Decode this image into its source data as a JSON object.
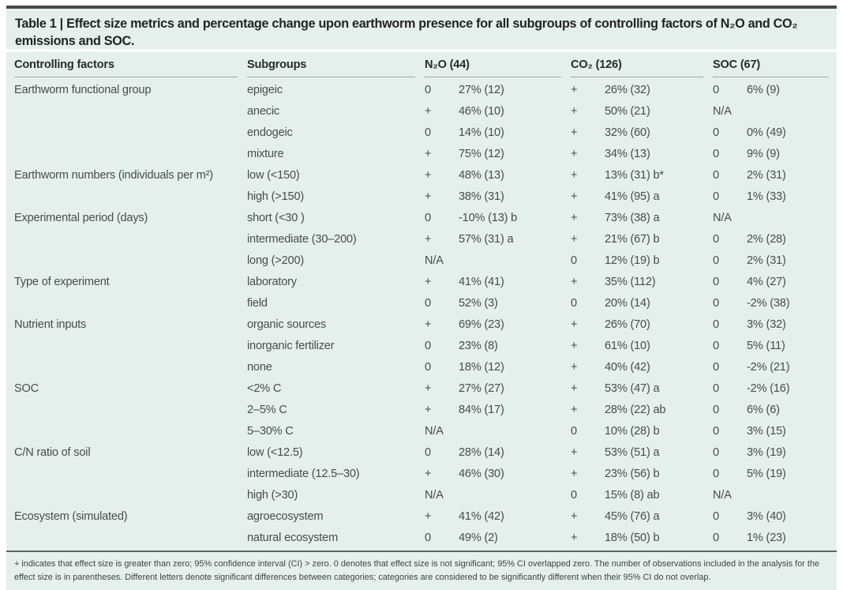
{
  "table": {
    "title": "Table 1 | Effect size metrics and percentage change upon earthworm presence for all subgroups of controlling factors of N₂O and CO₂ emissions and SOC.",
    "columns": {
      "factor": "Controlling factors",
      "subgroup": "Subgroups",
      "n2o": "N₂O (44)",
      "co2": "CO₂ (126)",
      "soc": "SOC (67)"
    },
    "rows": [
      {
        "factor": "Earthworm functional group",
        "subgroup": "epigeic",
        "n2o_sign": "0",
        "n2o_val": "27% (12)",
        "co2_sign": "+",
        "co2_val": "26% (32)",
        "soc_sign": "0",
        "soc_val": "6% (9)"
      },
      {
        "factor": "",
        "subgroup": "anecic",
        "n2o_sign": "+",
        "n2o_val": "46% (10)",
        "co2_sign": "+",
        "co2_val": "50% (21)",
        "soc_sign": "N/A",
        "soc_val": ""
      },
      {
        "factor": "",
        "subgroup": "endogeic",
        "n2o_sign": "0",
        "n2o_val": "14% (10)",
        "co2_sign": "+",
        "co2_val": "32% (60)",
        "soc_sign": "0",
        "soc_val": "0% (49)"
      },
      {
        "factor": "",
        "subgroup": "mixture",
        "n2o_sign": "+",
        "n2o_val": "75% (12)",
        "co2_sign": "+",
        "co2_val": "34% (13)",
        "soc_sign": "0",
        "soc_val": "9% (9)"
      },
      {
        "factor": "Earthworm numbers (individuals per m²)",
        "subgroup": "low (<150)",
        "n2o_sign": "+",
        "n2o_val": "48% (13)",
        "co2_sign": "+",
        "co2_val": "13% (31) b*",
        "soc_sign": "0",
        "soc_val": "2% (31)"
      },
      {
        "factor": "",
        "subgroup": "high (>150)",
        "n2o_sign": "+",
        "n2o_val": "38% (31)",
        "co2_sign": "+",
        "co2_val": "41% (95) a",
        "soc_sign": "0",
        "soc_val": "1% (33)"
      },
      {
        "factor": "Experimental period (days)",
        "subgroup": "short (<30 )",
        "n2o_sign": "0",
        "n2o_val": "-10% (13) b",
        "co2_sign": "+",
        "co2_val": "73% (38) a",
        "soc_sign": "N/A",
        "soc_val": ""
      },
      {
        "factor": "",
        "subgroup": "intermediate (30–200)",
        "n2o_sign": "+",
        "n2o_val": "57% (31) a",
        "co2_sign": "+",
        "co2_val": "21% (67) b",
        "soc_sign": "0",
        "soc_val": "2% (28)"
      },
      {
        "factor": "",
        "subgroup": "long (>200)",
        "n2o_sign": "N/A",
        "n2o_val": "",
        "co2_sign": "0",
        "co2_val": "12% (19) b",
        "soc_sign": "0",
        "soc_val": "2% (31)"
      },
      {
        "factor": "Type of experiment",
        "subgroup": "laboratory",
        "n2o_sign": "+",
        "n2o_val": "41% (41)",
        "co2_sign": "+",
        "co2_val": "35% (112)",
        "soc_sign": "0",
        "soc_val": "4% (27)"
      },
      {
        "factor": "",
        "subgroup": "field",
        "n2o_sign": "0",
        "n2o_val": "52% (3)",
        "co2_sign": "0",
        "co2_val": "20% (14)",
        "soc_sign": "0",
        "soc_val": "-2% (38)"
      },
      {
        "factor": "Nutrient inputs",
        "subgroup": "organic sources",
        "n2o_sign": "+",
        "n2o_val": "69% (23)",
        "co2_sign": "+",
        "co2_val": "26% (70)",
        "soc_sign": "0",
        "soc_val": "3% (32)"
      },
      {
        "factor": "",
        "subgroup": "inorganic fertilizer",
        "n2o_sign": "0",
        "n2o_val": "23% (8)",
        "co2_sign": "+",
        "co2_val": "61% (10)",
        "soc_sign": "0",
        "soc_val": "5% (11)"
      },
      {
        "factor": "",
        "subgroup": "none",
        "n2o_sign": "0",
        "n2o_val": "18% (12)",
        "co2_sign": "+",
        "co2_val": "40% (42)",
        "soc_sign": "0",
        "soc_val": "-2% (21)"
      },
      {
        "factor": "SOC",
        "subgroup": "<2% C",
        "n2o_sign": "+",
        "n2o_val": "27% (27)",
        "co2_sign": "+",
        "co2_val": "53% (47) a",
        "soc_sign": "0",
        "soc_val": "-2% (16)"
      },
      {
        "factor": "",
        "subgroup": "2–5% C",
        "n2o_sign": "+",
        "n2o_val": "84% (17)",
        "co2_sign": "+",
        "co2_val": "28% (22) ab",
        "soc_sign": "0",
        "soc_val": "6% (6)"
      },
      {
        "factor": "",
        "subgroup": "5–30% C",
        "n2o_sign": "N/A",
        "n2o_val": "",
        "co2_sign": "0",
        "co2_val": "10% (28) b",
        "soc_sign": "0",
        "soc_val": "3% (15)"
      },
      {
        "factor": "C/N ratio of soil",
        "subgroup": "low (<12.5)",
        "n2o_sign": "0",
        "n2o_val": "28% (14)",
        "co2_sign": "+",
        "co2_val": "53% (51) a",
        "soc_sign": "0",
        "soc_val": "3% (19)"
      },
      {
        "factor": "",
        "subgroup": "intermediate (12.5–30)",
        "n2o_sign": "+",
        "n2o_val": "46% (30)",
        "co2_sign": "+",
        "co2_val": "23% (56) b",
        "soc_sign": "0",
        "soc_val": "5% (19)"
      },
      {
        "factor": "",
        "subgroup": "high (>30)",
        "n2o_sign": "N/A",
        "n2o_val": "",
        "co2_sign": "0",
        "co2_val": "15% (8) ab",
        "soc_sign": "N/A",
        "soc_val": ""
      },
      {
        "factor": "Ecosystem (simulated)",
        "subgroup": "agroecosystem",
        "n2o_sign": "+",
        "n2o_val": "41% (42)",
        "co2_sign": "+",
        "co2_val": "45% (76) a",
        "soc_sign": "0",
        "soc_val": "3% (40)"
      },
      {
        "factor": "",
        "subgroup": "natural ecosystem",
        "n2o_sign": "0",
        "n2o_val": "49% (2)",
        "co2_sign": "+",
        "co2_val": "18% (50) b",
        "soc_sign": "0",
        "soc_val": "1% (23)"
      }
    ],
    "footnote": "+ indicates that effect size is greater than zero; 95% confidence interval (CI) > zero. 0 denotes that effect size is not significant; 95% CI overlapped zero. The number of observations included in the analysis for the effect size is in parentheses. Different letters denote significant differences between categories; categories are considered to be significantly different when their 95% CI do not overlap."
  },
  "colors": {
    "panel_tint": "#e5efec",
    "top_rule": "#434a48",
    "header_underline": "#9da7a4",
    "footnote_rule": "#5d6563",
    "title_text": "#1f2423",
    "body_text": "#474e4c"
  }
}
